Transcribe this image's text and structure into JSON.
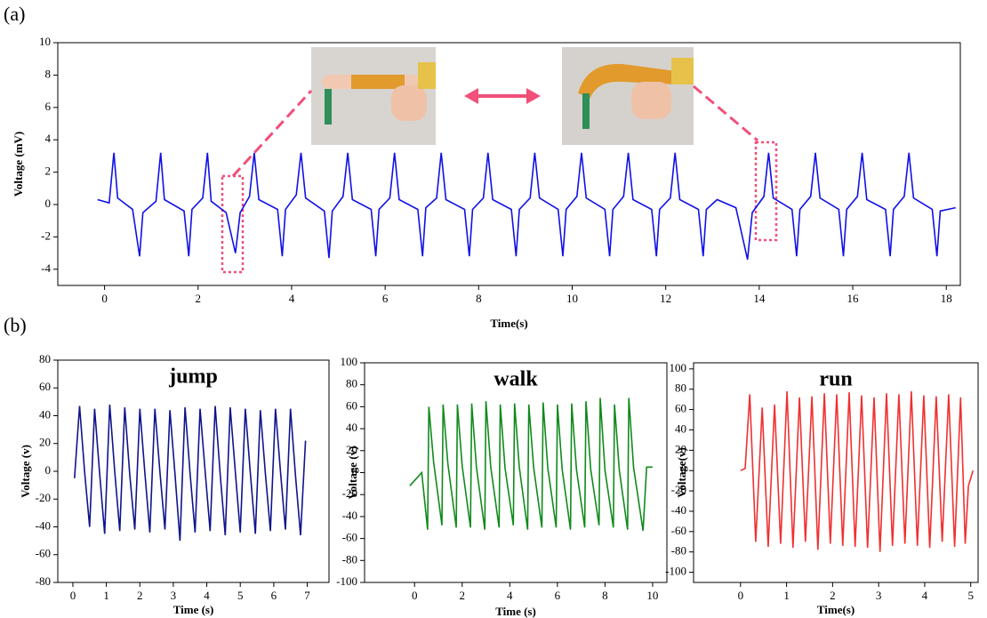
{
  "figure": {
    "labels": [
      "(a)",
      "(b)"
    ]
  },
  "chart_data": [
    {
      "type": "line",
      "xlabel": "Time(s)",
      "ylabel": "Voltage (mV)",
      "color": "#1010e8",
      "xlim": [
        -1,
        18.3
      ],
      "xticks": [
        0,
        2,
        4,
        6,
        8,
        10,
        12,
        14,
        16,
        18
      ],
      "ylim": [
        -5,
        10
      ],
      "yticks": [
        -4,
        -2,
        0,
        2,
        4,
        6,
        8,
        10
      ],
      "x": [
        -0.15,
        0.1,
        0.2,
        0.28,
        0.6,
        0.75,
        0.82,
        1.1,
        1.2,
        1.28,
        1.7,
        1.8,
        1.87,
        2.1,
        2.2,
        2.28,
        2.6,
        2.8,
        2.9,
        3.1,
        3.2,
        3.3,
        3.7,
        3.8,
        3.87,
        4.1,
        4.2,
        4.3,
        4.7,
        4.8,
        4.87,
        5.1,
        5.2,
        5.3,
        5.7,
        5.8,
        5.87,
        6.1,
        6.2,
        6.3,
        6.7,
        6.8,
        6.87,
        7.1,
        7.2,
        7.3,
        7.7,
        7.8,
        7.87,
        8.1,
        8.2,
        8.3,
        8.7,
        8.8,
        8.87,
        9.1,
        9.2,
        9.3,
        9.7,
        9.8,
        9.87,
        10.1,
        10.2,
        10.3,
        10.7,
        10.8,
        10.87,
        11.1,
        11.2,
        11.3,
        11.7,
        11.8,
        11.87,
        12.1,
        12.2,
        12.3,
        12.7,
        12.8,
        12.87,
        13.1,
        13.5,
        13.75,
        13.85,
        14.1,
        14.2,
        14.3,
        14.7,
        14.8,
        14.87,
        15.1,
        15.2,
        15.3,
        15.7,
        15.8,
        15.87,
        16.1,
        16.2,
        16.3,
        16.7,
        16.8,
        16.87,
        17.1,
        17.2,
        17.3,
        17.7,
        17.8,
        17.87,
        18.2
      ],
      "values": [
        0.3,
        0.1,
        3.2,
        0.4,
        -0.3,
        -3.2,
        -0.5,
        0.2,
        3.2,
        0.3,
        -0.4,
        -3.2,
        -0.3,
        0.4,
        3.2,
        0.2,
        -0.5,
        -3.0,
        -0.5,
        0.5,
        3.2,
        0.3,
        -0.3,
        -3.2,
        -0.3,
        0.6,
        3.2,
        0.4,
        -0.4,
        -3.3,
        -0.4,
        0.5,
        3.2,
        0.3,
        -0.3,
        -3.2,
        -0.3,
        0.4,
        3.2,
        0.3,
        -0.3,
        -3.2,
        -0.2,
        0.4,
        3.2,
        0.3,
        -0.3,
        -3.2,
        -0.3,
        0.4,
        3.2,
        0.3,
        -0.3,
        -3.2,
        -0.3,
        0.4,
        3.2,
        0.4,
        -0.3,
        -3.2,
        -0.3,
        0.5,
        3.2,
        0.4,
        -0.3,
        -3.2,
        -0.3,
        0.5,
        3.2,
        0.3,
        -0.3,
        -3.2,
        -0.3,
        0.4,
        3.2,
        0.3,
        -0.3,
        -3.2,
        -0.3,
        0.3,
        -0.2,
        -3.4,
        -0.5,
        0.5,
        3.2,
        0.4,
        -0.3,
        -3.2,
        -0.3,
        0.5,
        3.2,
        0.4,
        -0.3,
        -3.2,
        -0.3,
        0.5,
        3.2,
        0.3,
        -0.3,
        -3.2,
        -0.3,
        0.5,
        3.2,
        0.4,
        -0.3,
        -3.2,
        -0.4,
        -0.2
      ]
    },
    {
      "type": "line",
      "title": "jump",
      "xlabel": "Time (s)",
      "ylabel": "Voltage (v)",
      "color": "#10148a",
      "xlim": [
        -0.45,
        7.65
      ],
      "xticks": [
        0,
        1,
        2,
        3,
        4,
        5,
        6,
        7
      ],
      "ylim": [
        -80,
        80
      ],
      "yticks": [
        -80,
        -60,
        -40,
        -20,
        0,
        20,
        40,
        60,
        80
      ],
      "x": [
        0.05,
        0.2,
        0.35,
        0.5,
        0.65,
        0.8,
        0.95,
        1.1,
        1.25,
        1.4,
        1.55,
        1.7,
        1.85,
        2.0,
        2.15,
        2.3,
        2.45,
        2.6,
        2.75,
        2.9,
        3.05,
        3.2,
        3.35,
        3.5,
        3.65,
        3.8,
        3.95,
        4.1,
        4.25,
        4.4,
        4.55,
        4.7,
        4.85,
        5.0,
        5.15,
        5.3,
        5.45,
        5.6,
        5.75,
        5.9,
        6.05,
        6.2,
        6.35,
        6.5,
        6.65,
        6.8,
        6.95
      ],
      "values": [
        -5,
        47,
        0,
        -40,
        45,
        -2,
        -45,
        48,
        0,
        -43,
        46,
        -3,
        -42,
        45,
        -1,
        -44,
        45,
        0,
        -42,
        44,
        -2,
        -50,
        46,
        -1,
        -44,
        45,
        0,
        -43,
        47,
        -2,
        -46,
        46,
        0,
        -44,
        45,
        -1,
        -45,
        44,
        -2,
        -43,
        45,
        0,
        -42,
        45,
        -3,
        -46,
        22
      ]
    },
    {
      "type": "line",
      "title": "walk",
      "xlabel": "Time (s)",
      "ylabel": "Voltage (v)",
      "color": "#108a1c",
      "xlim": [
        -2.1,
        10.6
      ],
      "xticks": [
        0,
        2,
        4,
        6,
        8,
        10
      ],
      "ylim": [
        -100,
        100
      ],
      "yticks": [
        -100,
        -80,
        -60,
        -40,
        -20,
        0,
        20,
        40,
        60,
        80,
        100
      ],
      "x": [
        -0.2,
        0.3,
        0.55,
        0.6,
        0.8,
        1.15,
        1.2,
        1.4,
        1.75,
        1.8,
        2.0,
        2.35,
        2.4,
        2.6,
        2.95,
        3.0,
        3.2,
        3.55,
        3.6,
        3.8,
        4.15,
        4.2,
        4.4,
        4.75,
        4.8,
        5.0,
        5.35,
        5.4,
        5.6,
        5.95,
        6.0,
        6.2,
        6.55,
        6.6,
        6.8,
        7.15,
        7.2,
        7.4,
        7.75,
        7.8,
        8.0,
        8.35,
        8.4,
        8.6,
        8.95,
        9.0,
        9.2,
        9.6,
        9.75,
        10.0
      ],
      "values": [
        -12,
        0,
        -52,
        60,
        10,
        -48,
        62,
        8,
        -50,
        62,
        6,
        -50,
        63,
        5,
        -52,
        65,
        5,
        -50,
        62,
        4,
        -48,
        63,
        5,
        -52,
        62,
        5,
        -50,
        64,
        4,
        -50,
        62,
        3,
        -52,
        63,
        3,
        -50,
        65,
        3,
        -48,
        68,
        2,
        -50,
        62,
        2,
        -52,
        68,
        5,
        -53,
        5,
        5
      ]
    },
    {
      "type": "line",
      "title": "run",
      "xlabel": "Time(s)",
      "ylabel": "Voltage(v)",
      "color": "#f03030",
      "xlim": [
        -1.02,
        5.16
      ],
      "xticks": [
        0,
        1,
        2,
        3,
        4,
        5
      ],
      "ylim": [
        -110,
        106
      ],
      "yticks": [
        -100,
        -80,
        -60,
        -40,
        -20,
        0,
        20,
        40,
        60,
        80,
        100
      ],
      "x": [
        0,
        0.1,
        0.2,
        0.33,
        0.47,
        0.6,
        0.74,
        0.87,
        1.01,
        1.14,
        1.28,
        1.41,
        1.55,
        1.68,
        1.82,
        1.95,
        2.09,
        2.22,
        2.36,
        2.49,
        2.63,
        2.76,
        2.9,
        3.03,
        3.17,
        3.3,
        3.44,
        3.57,
        3.71,
        3.84,
        3.98,
        4.11,
        4.25,
        4.38,
        4.52,
        4.65,
        4.78,
        4.88,
        4.95,
        5.05
      ],
      "values": [
        0,
        2,
        75,
        -70,
        62,
        -75,
        65,
        -72,
        78,
        -76,
        72,
        -70,
        73,
        -78,
        76,
        -72,
        75,
        -74,
        77,
        -75,
        74,
        -76,
        72,
        -80,
        76,
        -74,
        75,
        -72,
        78,
        -74,
        74,
        -76,
        73,
        -70,
        75,
        -75,
        72,
        -72,
        -15,
        0
      ]
    }
  ]
}
